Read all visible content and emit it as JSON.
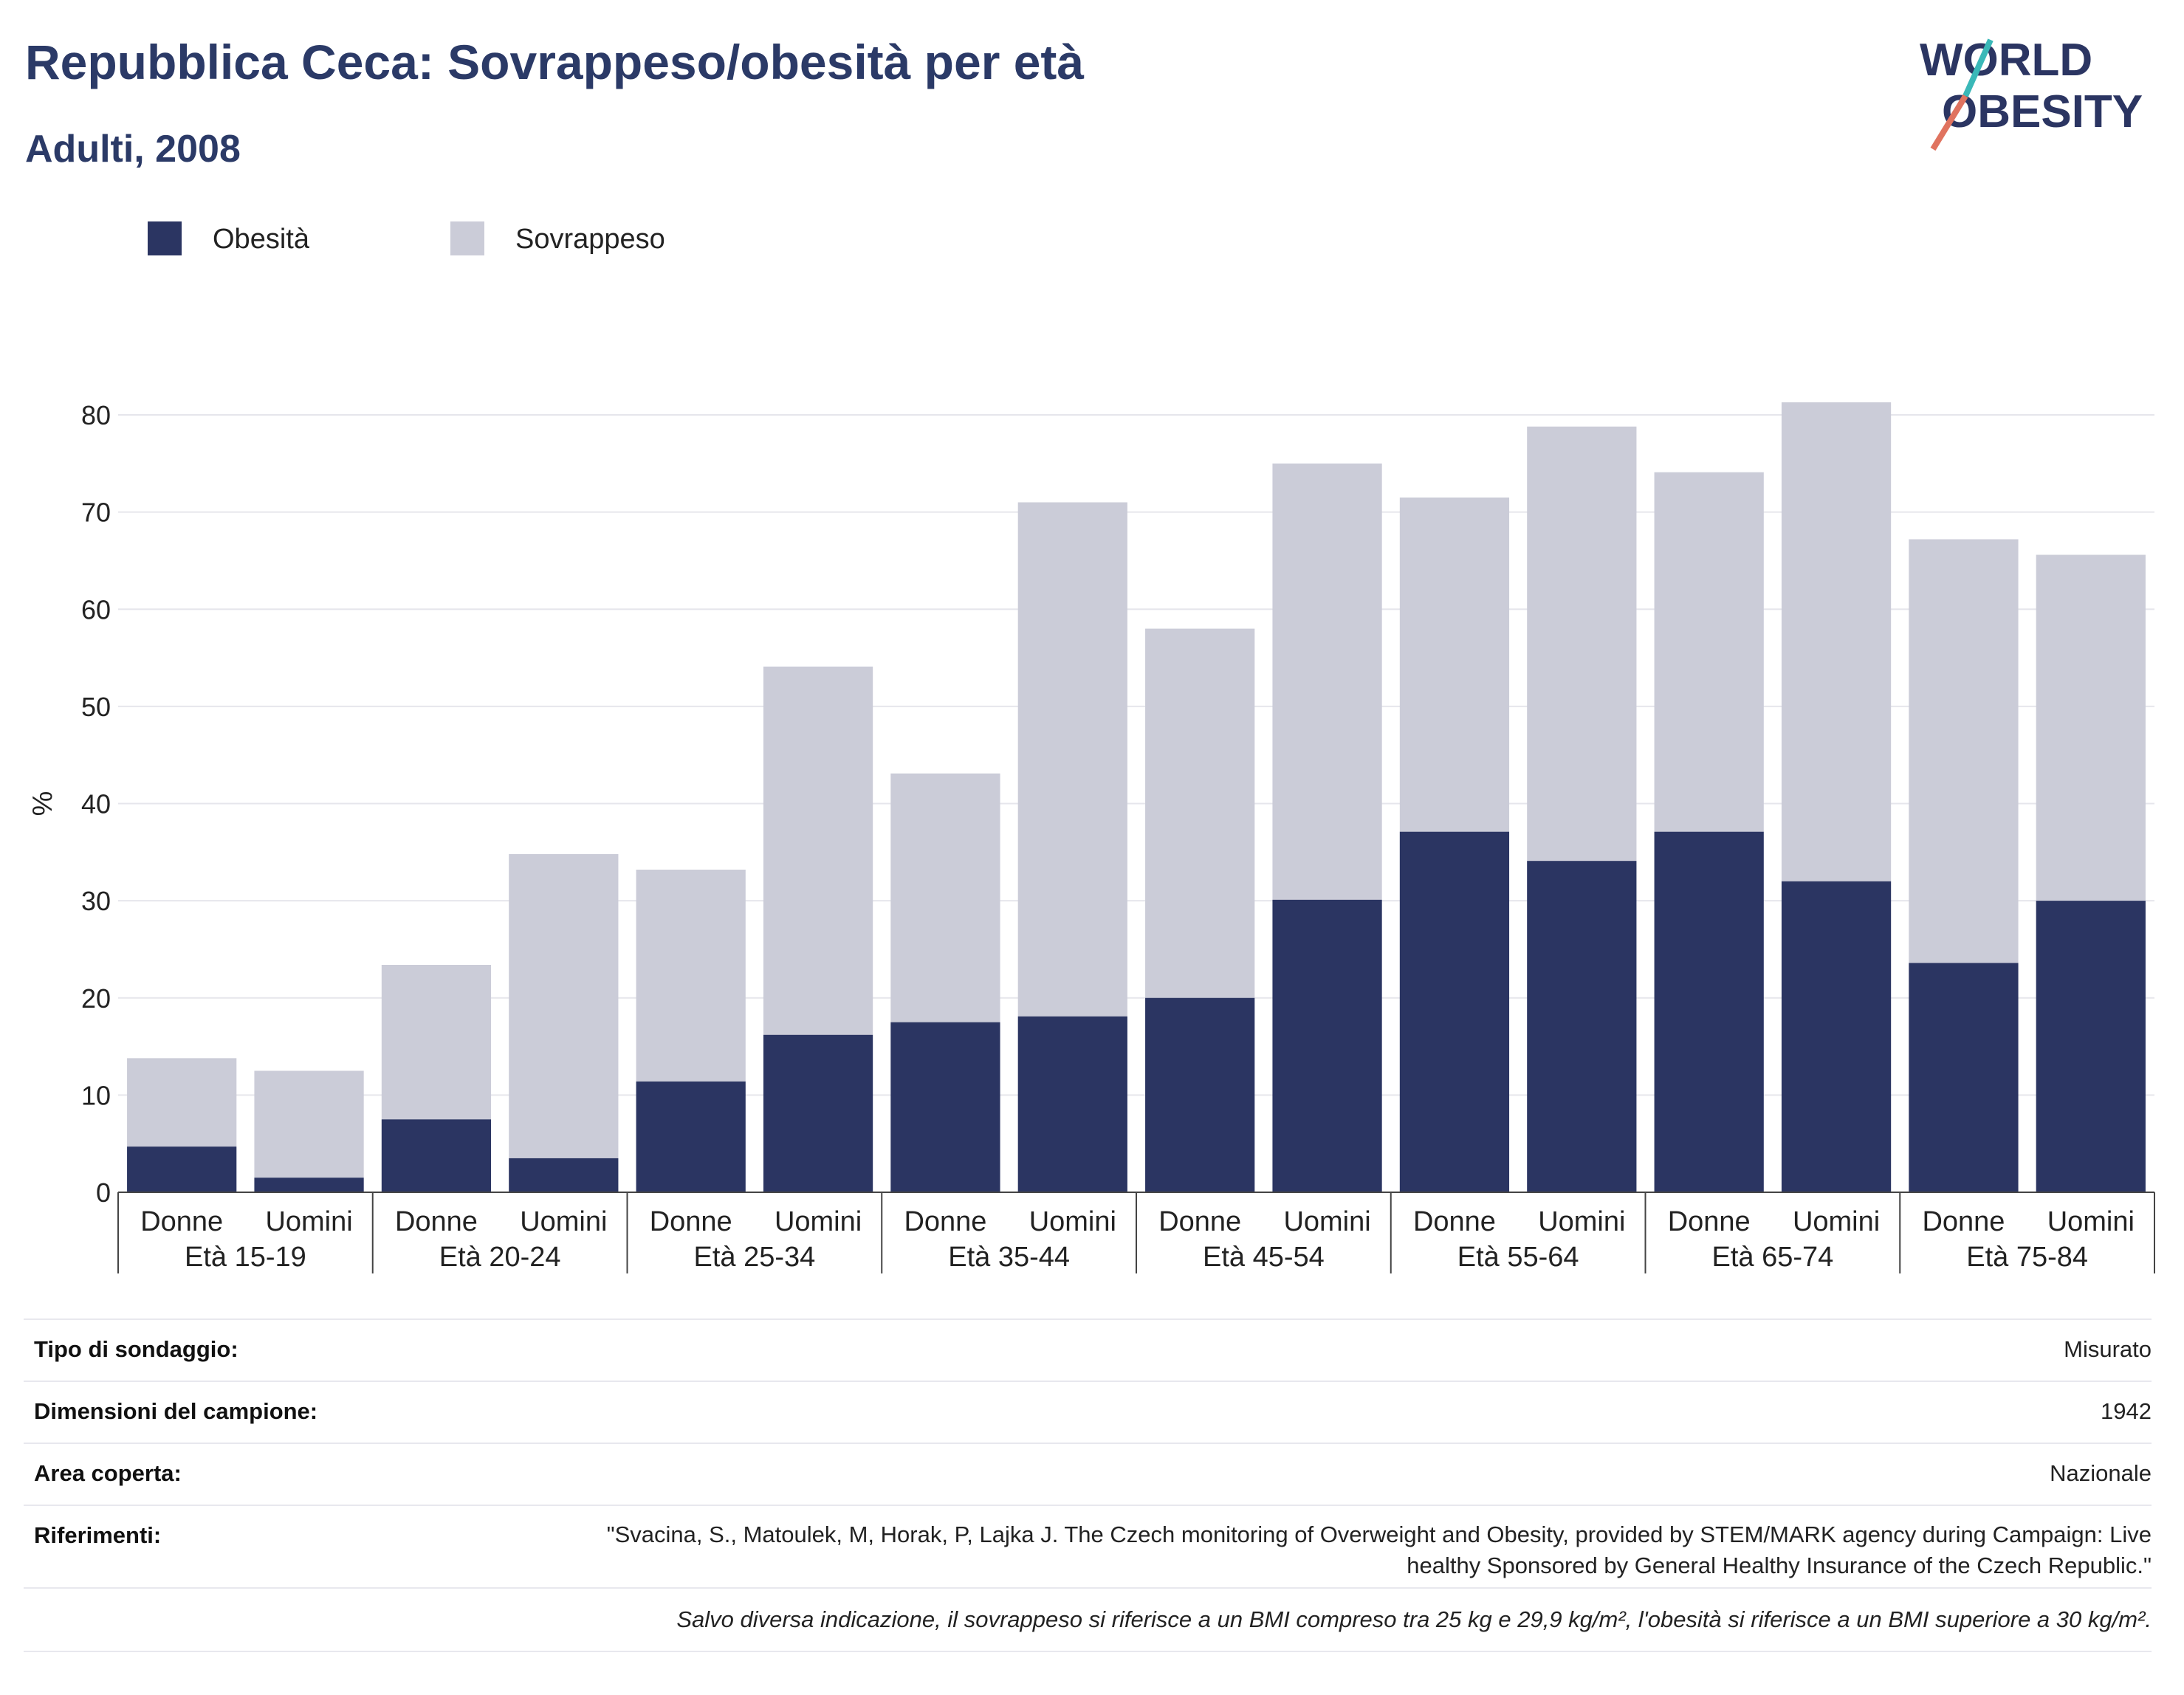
{
  "header": {
    "title": "Repubblica Ceca: Sovrappeso/obesità per età",
    "subtitle": "Adulti, 2008"
  },
  "logo": {
    "line1": "WORLD",
    "line2": "OBESITY"
  },
  "legend": [
    {
      "label": "Obesità",
      "color": "#2b3562"
    },
    {
      "label": "Sovrappeso",
      "color": "#cbccd8"
    }
  ],
  "chart_data": {
    "type": "bar",
    "stacked": true,
    "ylabel": "%",
    "ylim": [
      0,
      80
    ],
    "yticks": [
      0,
      10,
      20,
      30,
      40,
      50,
      60,
      70,
      80
    ],
    "grid": true,
    "legend_position": "top-left",
    "groups": [
      "Età 15-19",
      "Età 20-24",
      "Età 25-34",
      "Età 35-44",
      "Età 45-54",
      "Età 55-64",
      "Età 65-74",
      "Età 75-84"
    ],
    "sublabels": [
      "Donne",
      "Uomini"
    ],
    "series": [
      {
        "name": "Obesità",
        "color": "#2b3562",
        "values": [
          4.7,
          1.5,
          7.5,
          3.5,
          11.4,
          16.2,
          17.5,
          18.1,
          20.0,
          30.1,
          37.1,
          34.1,
          37.1,
          32.0,
          23.6,
          30.0
        ]
      },
      {
        "name": "Sovrappeso",
        "color": "#cbccd8",
        "values": [
          9.1,
          11.0,
          15.9,
          31.3,
          21.8,
          37.9,
          25.6,
          52.9,
          38.0,
          44.9,
          34.4,
          44.7,
          37.0,
          49.3,
          43.6,
          35.6
        ]
      }
    ],
    "totals": [
      13.8,
      12.5,
      23.4,
      34.8,
      33.2,
      54.1,
      43.1,
      71.0,
      58.0,
      75.0,
      71.5,
      78.8,
      74.1,
      81.3,
      67.2,
      65.6
    ]
  },
  "info": {
    "survey_type_label": "Tipo di sondaggio:",
    "survey_type_value": "Misurato",
    "sample_size_label": "Dimensioni del campione:",
    "sample_size_value": "1942",
    "area_label": "Area coperta:",
    "area_value": "Nazionale",
    "references_label": "Riferimenti:",
    "references_value": "\"Svacina, S., Matoulek, M, Horak, P, Lajka J. The Czech monitoring of Overweight and Obesity, provided by STEM/MARK agency during Campaign: Live healthy Sponsored by General Healthy Insurance of the Czech Republic.\"",
    "note": "Salvo diversa indicazione, il sovrappeso si riferisce a un BMI compreso tra 25 kg e 29,9 kg/m², l'obesità si riferisce a un BMI superiore a 30 kg/m²."
  }
}
